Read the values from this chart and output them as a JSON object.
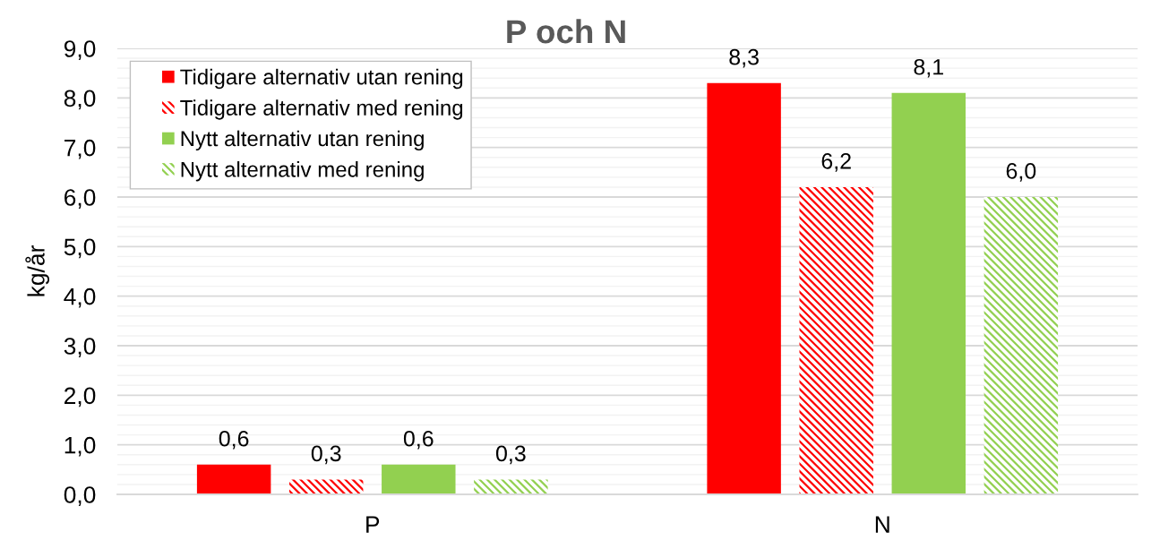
{
  "chart_data": {
    "type": "bar",
    "title": "P och N",
    "ylabel": "kg/år",
    "categories": [
      "P",
      "N"
    ],
    "series": [
      {
        "name": "Tidigare alternativ utan rening",
        "color": "#ff0000",
        "values": [
          0.6,
          8.3
        ],
        "value_labels": [
          "0,6",
          "8,3"
        ]
      },
      {
        "name": "Tidigare alternativ med rening",
        "color": "#ff0000",
        "values": [
          0.3,
          6.2
        ],
        "value_labels": [
          "0,3",
          "6,2"
        ]
      },
      {
        "name": "Nytt alternativ utan rening",
        "color": "#92d050",
        "values": [
          0.6,
          8.1
        ],
        "value_labels": [
          "0,6",
          "8,1"
        ]
      },
      {
        "name": "Nytt alternativ med rening",
        "color": "#92d050",
        "values": [
          0.3,
          6.0
        ],
        "value_labels": [
          "0,3",
          "6,0"
        ]
      }
    ],
    "ylim": [
      0,
      9
    ],
    "yticks": [
      {
        "value": 0,
        "label": "0,0"
      },
      {
        "value": 1,
        "label": "1,0"
      },
      {
        "value": 2,
        "label": "2,0"
      },
      {
        "value": 3,
        "label": "3,0"
      },
      {
        "value": 4,
        "label": "4,0"
      },
      {
        "value": 5,
        "label": "5,0"
      },
      {
        "value": 6,
        "label": "6,0"
      },
      {
        "value": 7,
        "label": "7,0"
      },
      {
        "value": 8,
        "label": "8,0"
      },
      {
        "value": 9,
        "label": "9,0"
      }
    ],
    "grid": "y",
    "legend": "top left"
  }
}
